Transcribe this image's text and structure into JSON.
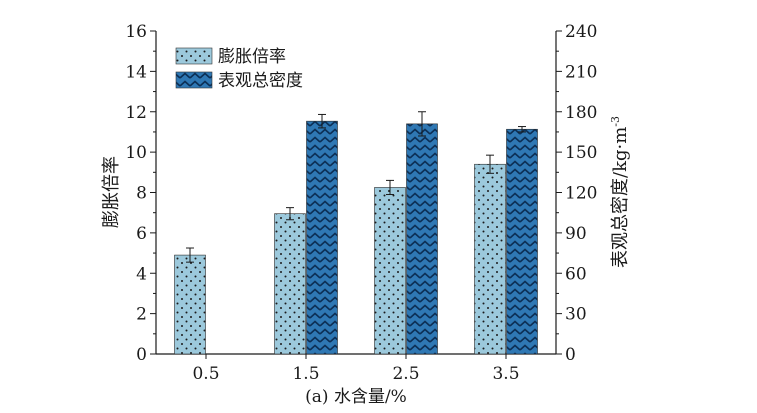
{
  "chart_data": {
    "type": "bar",
    "caption": "(a) 水含量/%",
    "categories": [
      "0.5",
      "1.5",
      "2.5",
      "3.5"
    ],
    "series": [
      {
        "name": "膨胀倍率",
        "axis": "left",
        "color": "#9cc9dc",
        "pattern": "dots",
        "values": [
          4.9,
          6.95,
          8.25,
          9.4
        ],
        "errors": [
          0.35,
          0.3,
          0.35,
          0.45
        ]
      },
      {
        "name": "表观总密度",
        "axis": "right",
        "color": "#2f78b4",
        "pattern": "zigzag",
        "values": [
          null,
          173,
          171,
          167
        ],
        "errors": [
          null,
          5,
          9,
          2
        ]
      }
    ],
    "left_axis": {
      "label": "膨胀倍率",
      "ylim": [
        0,
        16
      ],
      "ticks": [
        "0",
        "2",
        "4",
        "6",
        "8",
        "10",
        "12",
        "14",
        "16"
      ]
    },
    "right_axis": {
      "label": "表观总密度/kg·m",
      "label_superscript": "-3",
      "ylim": [
        0,
        240
      ],
      "ticks": [
        "0",
        "30",
        "60",
        "90",
        "120",
        "150",
        "180",
        "210",
        "240"
      ]
    },
    "legend_position": "top-left",
    "grid": false
  }
}
